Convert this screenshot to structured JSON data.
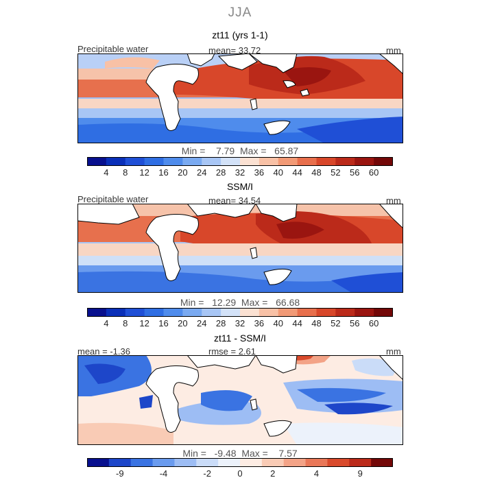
{
  "figure_title": "JJA",
  "panels": [
    {
      "title": "zt11 (yrs 1-1)",
      "variable": "Precipitable water",
      "mean_text": "mean=   33.72",
      "unit": "mm",
      "stats": "Min =    7.79  Max =   65.87",
      "min": 7.79,
      "max": 65.87,
      "mean": 33.72,
      "colorbar": "absolute"
    },
    {
      "title": "SSM/I",
      "variable": "Precipitable water",
      "mean_text": "mean=   34.54",
      "unit": "mm",
      "stats": "Min =   12.29  Max =   66.68",
      "min": 12.29,
      "max": 66.68,
      "mean": 34.54,
      "colorbar": "absolute"
    },
    {
      "title": "zt11 - SSM/I",
      "mean_text": "mean =   -1.36",
      "rmse_text": "rmse =    2.61",
      "unit": "mm",
      "stats": "Min =   -9.48  Max =    7.57",
      "min": -9.48,
      "max": 7.57,
      "mean": -1.36,
      "rmse": 2.61,
      "colorbar": "difference"
    }
  ],
  "colorbar_abs": {
    "ticks": [
      "4",
      "8",
      "12",
      "16",
      "20",
      "24",
      "28",
      "32",
      "36",
      "40",
      "44",
      "48",
      "52",
      "56",
      "60"
    ],
    "colors": [
      "#08108e",
      "#0a2fb8",
      "#1f4fd6",
      "#2f6ee3",
      "#4f8cec",
      "#7aaaf1",
      "#a8c6f5",
      "#d3e2f8",
      "#fbe1d2",
      "#f8c1a6",
      "#f29a76",
      "#e86f4c",
      "#d8472a",
      "#bb2a1a",
      "#9a1510",
      "#730808"
    ]
  },
  "colorbar_diff": {
    "ticks": [
      "-9",
      "-4",
      "-2",
      "0",
      "2",
      "4",
      "9"
    ],
    "colors": [
      "#08108e",
      "#1d46c9",
      "#3a73e2",
      "#6a9bee",
      "#9dbdf4",
      "#cadcf8",
      "#ecf2fb",
      "#fdece3",
      "#f9cbb5",
      "#f3a387",
      "#e97758",
      "#d94a2c",
      "#bb2a1a",
      "#730808"
    ]
  }
}
